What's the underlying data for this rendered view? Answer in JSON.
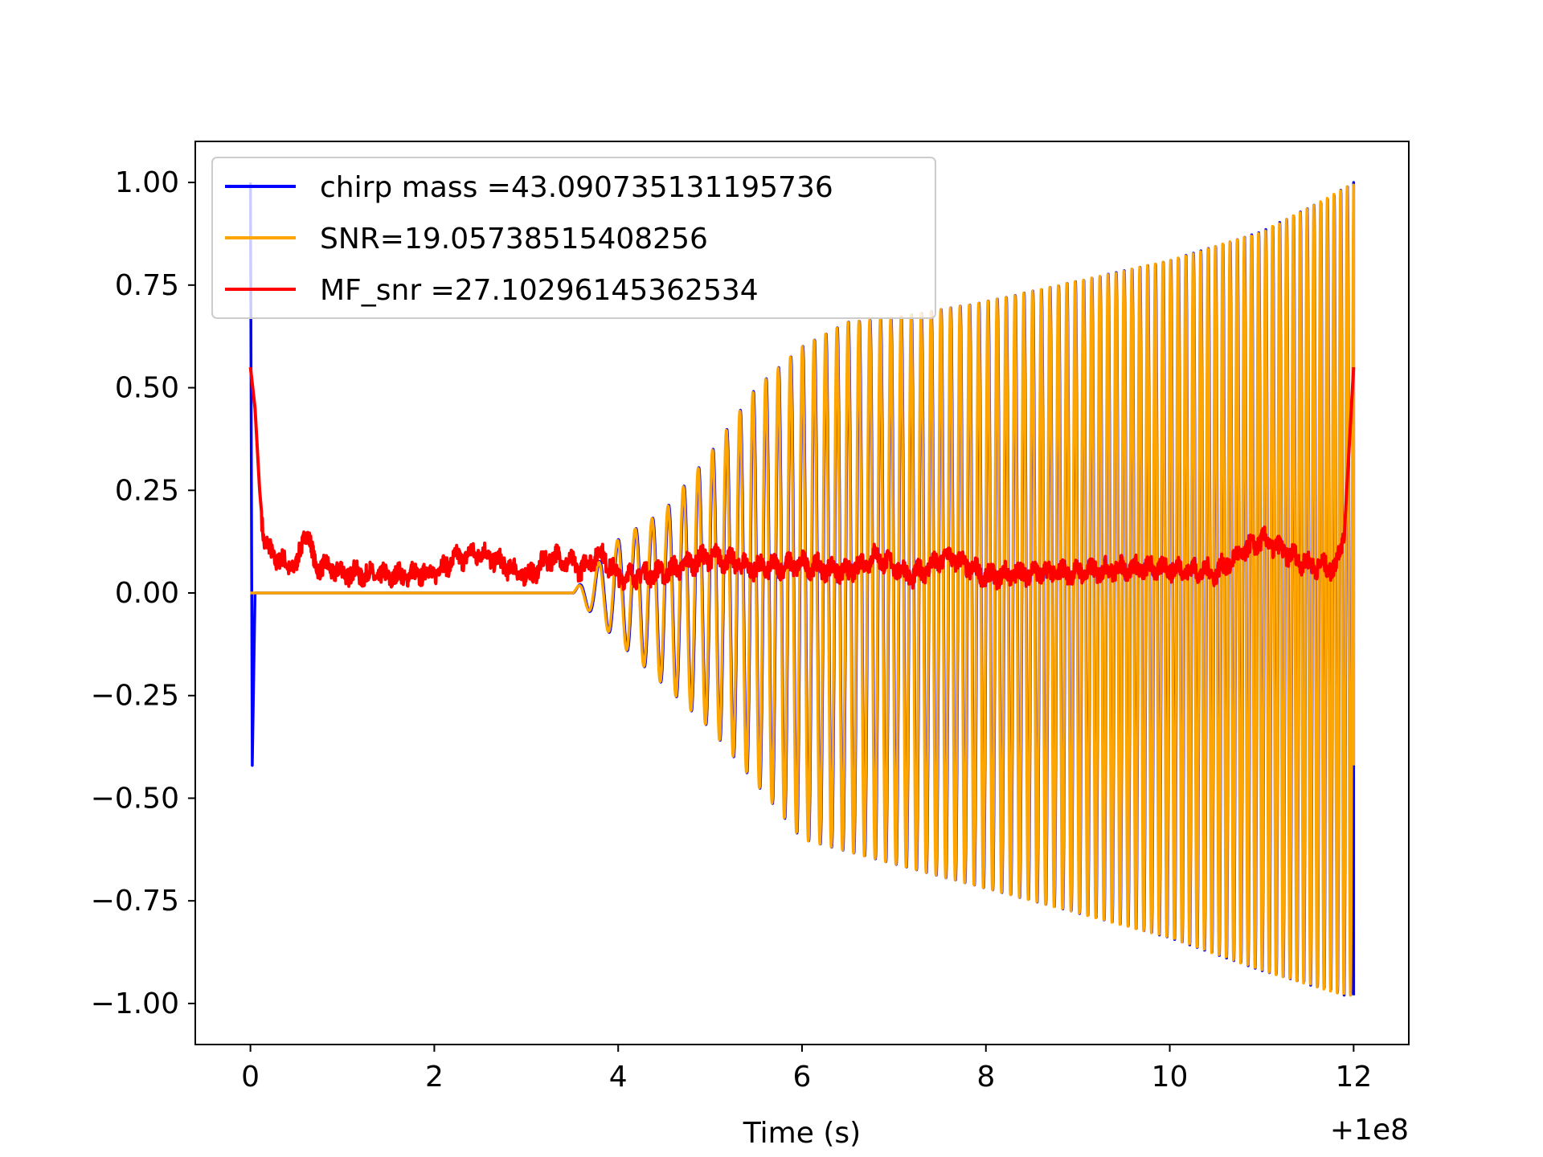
{
  "chart_data": {
    "type": "line",
    "title": "",
    "xlabel": "Time (s)",
    "ylabel": "",
    "x_offset_label": "+1e8",
    "xlim": [
      -0.6,
      12.6
    ],
    "ylim": [
      -1.1,
      1.1
    ],
    "grid": false,
    "legend_position": "top-left",
    "xticks": [
      0,
      2,
      4,
      6,
      8,
      10,
      12
    ],
    "xtick_labels": [
      "0",
      "2",
      "4",
      "6",
      "8",
      "10",
      "12"
    ],
    "yticks": [
      1.0,
      0.75,
      0.5,
      0.25,
      0.0,
      -0.25,
      -0.5,
      -0.75,
      -1.0
    ],
    "ytick_labels": [
      "1.00",
      "0.75",
      "0.50",
      "0.25",
      "0.00",
      "−0.25",
      "−0.50",
      "−0.75",
      "−1.00"
    ],
    "series": [
      {
        "name": "chirp mass =43.090735131195736",
        "color": "#0000ff",
        "description_points": [
          [
            0.0,
            1.0
          ],
          [
            0.02,
            -0.42
          ],
          [
            0.05,
            0.0
          ],
          [
            3.5,
            0.0
          ],
          [
            4.0,
            -0.12
          ],
          [
            5.0,
            -0.33
          ],
          [
            6.0,
            -0.6
          ],
          [
            7.0,
            -0.66
          ],
          [
            8.0,
            -0.72
          ],
          [
            9.0,
            -0.78
          ],
          [
            10.0,
            -0.84
          ],
          [
            11.0,
            -0.92
          ],
          [
            11.9,
            -0.98
          ],
          [
            12.0,
            1.0
          ]
        ]
      },
      {
        "name": "SNR=19.05738515408256",
        "color": "#ffa500",
        "envelope_points": [
          [
            3.5,
            0.0
          ],
          [
            4.0,
            0.13
          ],
          [
            4.5,
            0.2
          ],
          [
            5.0,
            0.34
          ],
          [
            5.5,
            0.5
          ],
          [
            6.0,
            0.6
          ],
          [
            6.5,
            0.66
          ],
          [
            7.0,
            0.67
          ],
          [
            8.0,
            0.71
          ],
          [
            9.0,
            0.76
          ],
          [
            10.0,
            0.81
          ],
          [
            11.0,
            0.88
          ],
          [
            11.7,
            0.96
          ],
          [
            12.0,
            1.0
          ]
        ]
      },
      {
        "name": "MF_snr =27.10296145362534",
        "color": "#ff0000",
        "points": [
          [
            0.0,
            0.55
          ],
          [
            0.05,
            0.45
          ],
          [
            0.1,
            0.25
          ],
          [
            0.15,
            0.12
          ],
          [
            0.3,
            0.08
          ],
          [
            0.5,
            0.06
          ],
          [
            0.6,
            0.16
          ],
          [
            0.7,
            0.07
          ],
          [
            1.0,
            0.05
          ],
          [
            1.5,
            0.04
          ],
          [
            2.0,
            0.05
          ],
          [
            2.2,
            0.08
          ],
          [
            2.5,
            0.1
          ],
          [
            3.0,
            0.04
          ],
          [
            3.3,
            0.09
          ],
          [
            3.6,
            0.06
          ],
          [
            3.8,
            0.1
          ],
          [
            4.0,
            0.04
          ],
          [
            4.5,
            0.05
          ],
          [
            5.0,
            0.09
          ],
          [
            5.5,
            0.06
          ],
          [
            6.0,
            0.07
          ],
          [
            6.5,
            0.05
          ],
          [
            6.8,
            0.09
          ],
          [
            7.2,
            0.04
          ],
          [
            7.6,
            0.09
          ],
          [
            8.0,
            0.04
          ],
          [
            8.5,
            0.05
          ],
          [
            9.0,
            0.05
          ],
          [
            9.5,
            0.06
          ],
          [
            10.0,
            0.06
          ],
          [
            10.5,
            0.05
          ],
          [
            11.0,
            0.13
          ],
          [
            11.5,
            0.07
          ],
          [
            11.8,
            0.06
          ],
          [
            11.9,
            0.15
          ],
          [
            12.0,
            0.55
          ]
        ]
      }
    ]
  }
}
